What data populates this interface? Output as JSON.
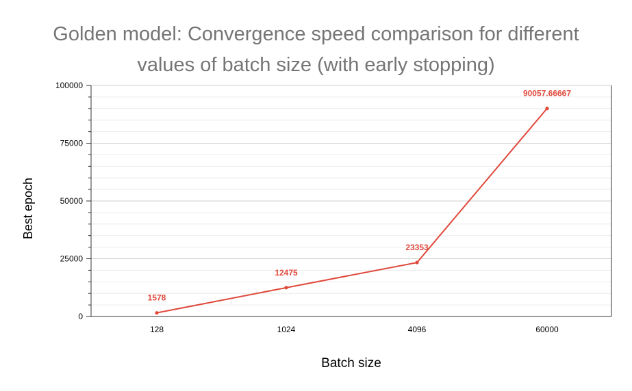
{
  "chart_data": {
    "type": "line",
    "title_lines": [
      "Golden model: Convergence speed comparison for different",
      "values of batch size (with early stopping)"
    ],
    "xlabel": "Batch size",
    "ylabel": "Best epoch",
    "categories": [
      "128",
      "1024",
      "4096",
      "60000"
    ],
    "series": [
      {
        "values": [
          1578,
          12475,
          23353,
          90057.66667
        ],
        "labels": [
          "1578",
          "12475",
          "23353",
          "90057.66667"
        ]
      }
    ],
    "ylim": [
      0,
      100000
    ],
    "yticks": [
      0,
      25000,
      50000,
      75000,
      100000
    ],
    "ytick_labels": [
      "0",
      "25000",
      "50000",
      "75000",
      "100000"
    ],
    "grid": true,
    "legend": "none",
    "colors": {
      "line": "#e0483b",
      "label": "#e0483b",
      "title": "#757575",
      "grid": "#cccccc"
    }
  }
}
